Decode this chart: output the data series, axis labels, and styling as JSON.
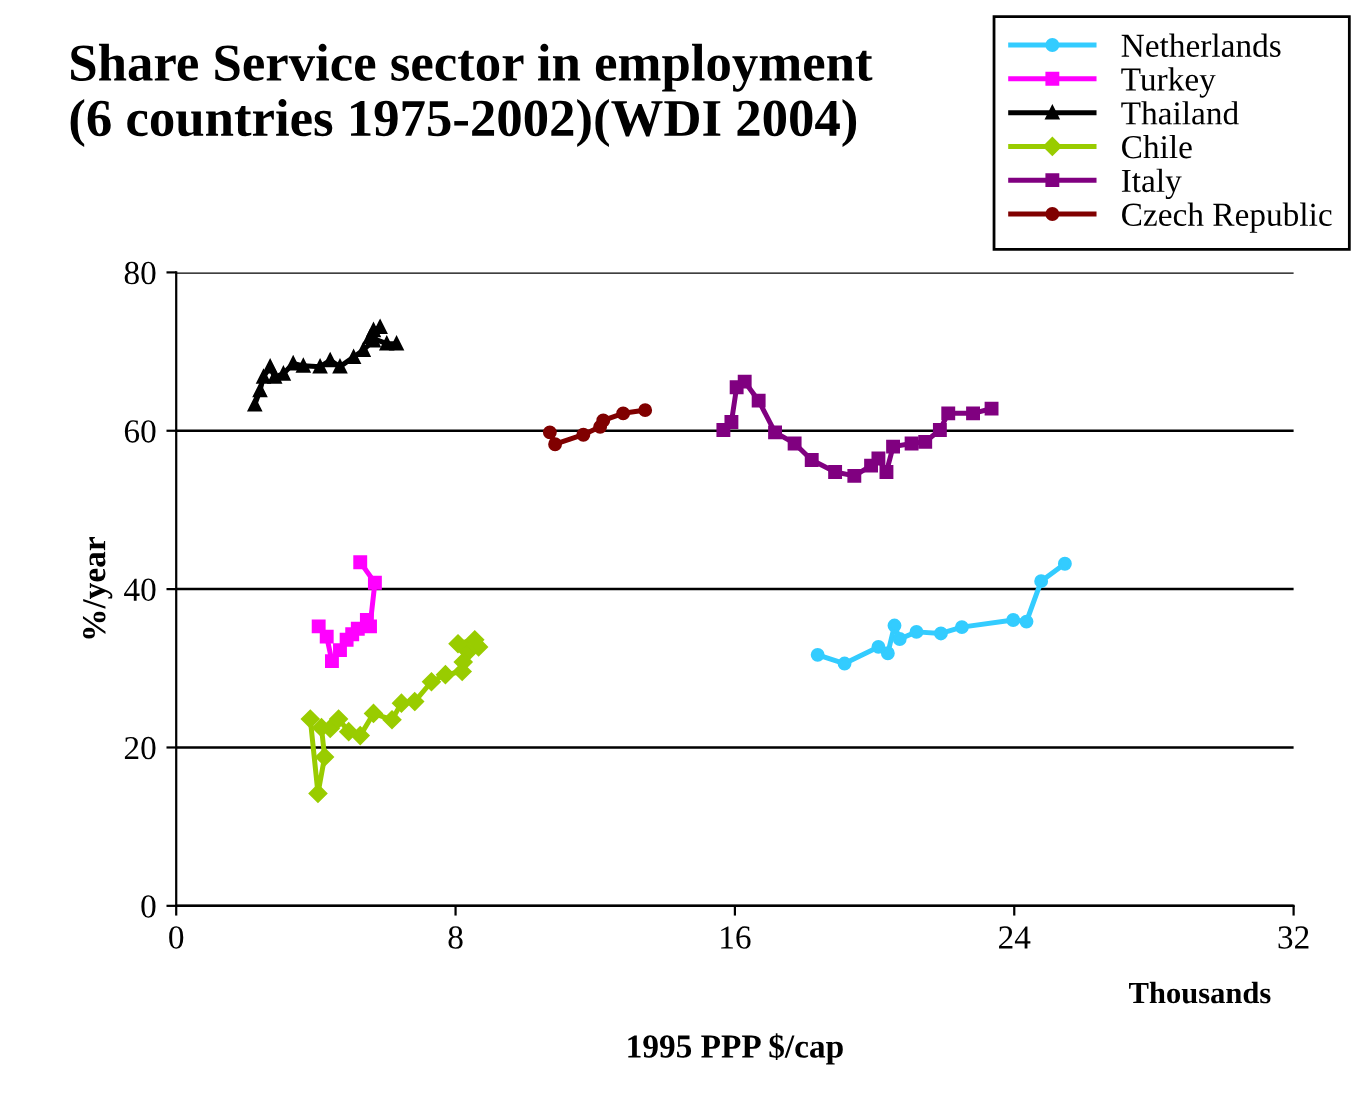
{
  "chart_data": {
    "type": "line",
    "title": "Share Service sector in employment\n(6 countries 1975-2002)(WDI 2004)",
    "xlabel": "1995 PPP $/cap",
    "ylabel": "%/year",
    "annotations": [
      "Thousands"
    ],
    "xlim": [
      0,
      32
    ],
    "xticks": [
      0,
      8,
      16,
      24,
      32
    ],
    "ylim": [
      0,
      80
    ],
    "yticks": [
      0,
      20,
      40,
      60,
      80
    ],
    "grid": "y",
    "legend": "top right",
    "line_style": "solid",
    "series": [
      {
        "name": "Netherlands",
        "color": "#33ccff",
        "marker": "circle",
        "x": [
          18.37,
          19.14,
          20.11,
          20.38,
          20.57,
          20.72,
          21.2,
          21.9,
          22.5,
          23.97,
          24.35,
          24.77,
          25.45
        ],
        "values": [
          31.7,
          30.6,
          32.7,
          31.9,
          35.4,
          33.7,
          34.6,
          34.4,
          35.2,
          36.1,
          35.9,
          41.0,
          43.2
        ]
      },
      {
        "name": "Turkey",
        "color": "#ff00ff",
        "marker": "square",
        "x": [
          4.08,
          4.31,
          4.46,
          4.69,
          4.88,
          5.04,
          5.2,
          5.46,
          5.55,
          5.69,
          5.27
        ],
        "values": [
          35.3,
          34.0,
          30.9,
          32.3,
          33.6,
          34.3,
          35.0,
          36.1,
          35.3,
          40.8,
          43.4
        ]
      },
      {
        "name": "Thailand",
        "color": "#000000",
        "marker": "triangle",
        "x": [
          2.25,
          2.4,
          2.5,
          2.69,
          2.82,
          3.07,
          3.35,
          3.64,
          4.12,
          4.41,
          4.69,
          5.08,
          5.36,
          5.65,
          5.84,
          5.65,
          5.55,
          6.03,
          6.31
        ],
        "values": [
          63.3,
          65.1,
          66.8,
          68.1,
          66.8,
          67.2,
          68.5,
          68.2,
          68.1,
          68.9,
          68.1,
          69.3,
          70.2,
          71.4,
          73.1,
          72.7,
          71.8,
          71.0,
          71.0
        ]
      },
      {
        "name": "Chile",
        "color": "#99cc00",
        "marker": "diamond",
        "x": [
          3.84,
          4.06,
          4.25,
          4.16,
          4.41,
          4.65,
          4.94,
          5.27,
          5.65,
          6.18,
          6.45,
          6.83,
          7.31,
          7.71,
          8.19,
          8.22,
          8.36,
          8.07,
          8.55,
          8.66
        ],
        "values": [
          23.6,
          14.2,
          18.8,
          22.5,
          22.4,
          23.6,
          22.0,
          21.5,
          24.3,
          23.5,
          25.6,
          25.8,
          28.3,
          29.2,
          29.6,
          30.8,
          32.1,
          33.1,
          33.6,
          32.7
        ]
      },
      {
        "name": "Italy",
        "color": "#800080",
        "marker": "square",
        "x": [
          15.67,
          15.9,
          16.05,
          16.28,
          16.68,
          17.15,
          17.71,
          18.2,
          18.87,
          19.42,
          19.9,
          20.11,
          20.34,
          20.53,
          21.06,
          21.45,
          21.87,
          22.11,
          22.82,
          23.35
        ],
        "values": [
          60.1,
          61.1,
          65.5,
          66.2,
          63.8,
          59.8,
          58.4,
          56.3,
          54.8,
          54.3,
          55.6,
          56.5,
          54.8,
          58.0,
          58.4,
          58.6,
          60.1,
          62.2,
          62.2,
          62.8
        ]
      },
      {
        "name": "Czech Republic",
        "color": "#800000",
        "marker": "circle",
        "x": [
          10.7,
          10.85,
          11.66,
          12.14,
          12.23,
          12.8,
          13.43
        ],
        "values": [
          59.8,
          58.3,
          59.5,
          60.5,
          61.3,
          62.2,
          62.6
        ]
      }
    ]
  }
}
